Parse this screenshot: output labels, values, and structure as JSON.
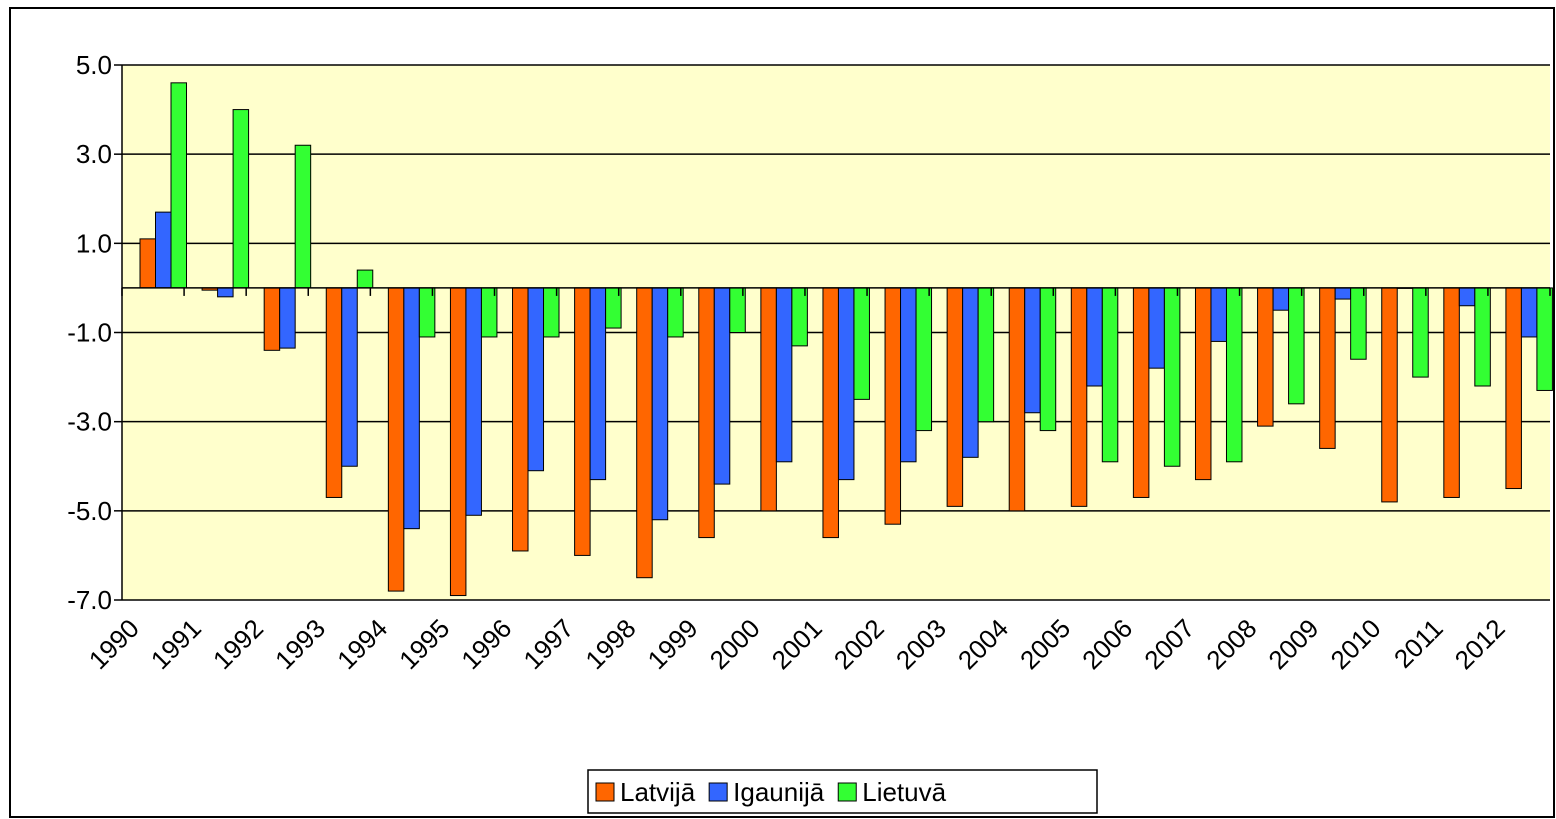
{
  "chart_data": {
    "type": "bar",
    "categories": [
      "1990",
      "1991",
      "1992",
      "1993",
      "1994",
      "1995",
      "1996",
      "1997",
      "1998",
      "1999",
      "2000",
      "2001",
      "2002",
      "2003",
      "2004",
      "2005",
      "2006",
      "2007",
      "2008",
      "2009",
      "2010",
      "2011",
      "2012"
    ],
    "series": [
      {
        "name": "Latvijā",
        "color": "#ff6600",
        "values": [
          1.1,
          -0.05,
          -1.4,
          -4.7,
          -6.8,
          -6.9,
          -5.9,
          -6.0,
          -6.5,
          -5.6,
          -5.0,
          -5.6,
          -5.3,
          -4.9,
          -5.0,
          -4.9,
          -4.7,
          -4.3,
          -3.1,
          -3.6,
          -4.8,
          -4.7,
          -4.5
        ]
      },
      {
        "name": "Igaunijā",
        "color": "#3366ff",
        "values": [
          1.7,
          -0.2,
          -1.35,
          -4.0,
          -5.4,
          -5.1,
          -4.1,
          -4.3,
          -5.2,
          -4.4,
          -3.9,
          -4.3,
          -3.9,
          -3.8,
          -2.8,
          -2.2,
          -1.8,
          -1.2,
          -0.5,
          -0.25,
          0,
          -0.4,
          -1.1
        ]
      },
      {
        "name": "Lietuvā",
        "color": "#33ff33",
        "values": [
          4.6,
          4.0,
          3.2,
          0.4,
          -1.1,
          -1.1,
          -1.1,
          -0.9,
          -1.1,
          -1.0,
          -1.3,
          -2.5,
          -3.2,
          -3.0,
          -3.2,
          -3.9,
          -4.0,
          -3.9,
          -2.6,
          -1.6,
          -2.0,
          -2.2,
          -2.3
        ]
      }
    ],
    "ylim": [
      -7,
      5
    ],
    "yticks": [
      {
        "value": 5,
        "label": "5.0"
      },
      {
        "value": 3,
        "label": "3.0"
      },
      {
        "value": 1,
        "label": "1.0"
      },
      {
        "value": -1,
        "label": "-1.0"
      },
      {
        "value": -3,
        "label": "-3.0"
      },
      {
        "value": -5,
        "label": "-5.0"
      },
      {
        "value": -7,
        "label": "-7.0"
      }
    ],
    "grid": true,
    "plot_background": "#ffffcc",
    "legend": "bottom"
  }
}
